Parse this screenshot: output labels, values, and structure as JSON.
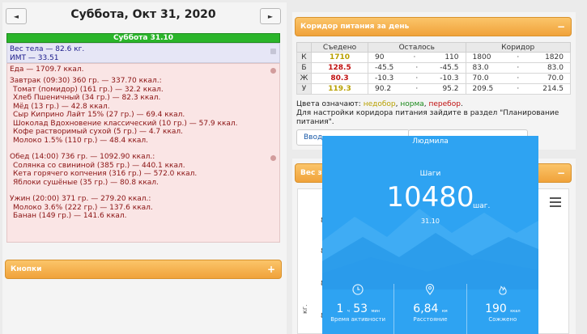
{
  "date_nav": {
    "prev_label": "◄",
    "next_label": "►",
    "title": "Суббота, Окт 31, 2020"
  },
  "day_bar": "Суббота 31.10",
  "body": {
    "weight": "Вес тела — 82.6 кг.",
    "bmi": "ИМТ — 33.51"
  },
  "food": {
    "total": "Еда — 1709.7 ккал.",
    "meals": [
      {
        "title": "Завтрак (09:30) 360 гр. — 337.70 ккал.:",
        "items": [
          "Томат (помидор) (161 гр.) — 32.2 ккал.",
          "Хлеб Пшеничный (34 гр.) — 82.3 ккал.",
          "Мёд (13 гр.) — 42.8 ккал.",
          "Сыр Киприно Лайт 15% (27 гр.) — 69.4 ккал.",
          "Шоколад Вдохновение классический (10 гр.) — 57.9 ккал.",
          "Кофе растворимый сухой (5 гр.) — 4.7 ккал.",
          "Молоко 1.5% (110 гр.) — 48.4 ккал."
        ]
      },
      {
        "title": "Обед (14:00) 736 гр. — 1092.90 ккал.:",
        "items": [
          "Солянка со свининой (385 гр.) — 440.1 ккал.",
          "Кета горячего копчения (316 гр.) — 572.0 ккал.",
          "Яблоки сушёные (35 гр.) — 80.8 ккал."
        ]
      },
      {
        "title": "Ужин (20:00) 371 гр. — 279.20 ккал.:",
        "items": [
          "Молоко 3.6% (222 гр.) — 137.6 ккал.",
          "Банан (149 гр.) — 141.6 ккал."
        ]
      }
    ]
  },
  "buttons_panel": {
    "title": "Кнопки",
    "toggle": "+"
  },
  "corridor": {
    "title": "Коридор питания за день",
    "toggle": "−",
    "headers": [
      "Съедено",
      "Осталось",
      "Коридор"
    ],
    "rows": [
      {
        "label": "К",
        "eaten": "1710",
        "eaten_color": "#b8a000",
        "left_from": "90",
        "dot": "·",
        "left_to": "110",
        "corr_from": "1800",
        "corr_to": "1820"
      },
      {
        "label": "Б",
        "eaten": "128.5",
        "eaten_color": "#c01010",
        "left_from": "-45.5",
        "dot": "·",
        "left_to": "-45.5",
        "corr_from": "83.0",
        "corr_to": "83.0"
      },
      {
        "label": "Ж",
        "eaten": "80.3",
        "eaten_color": "#c01010",
        "left_from": "-10.3",
        "dot": "·",
        "left_to": "-10.3",
        "corr_from": "70.0",
        "corr_to": "70.0"
      },
      {
        "label": "У",
        "eaten": "119.3",
        "eaten_color": "#b8a000",
        "left_from": "90.2",
        "dot": "·",
        "left_to": "95.2",
        "corr_from": "209.5",
        "corr_to": "214.5"
      }
    ],
    "legend_prefix": "Цвета означают: ",
    "legend_under": "недобор",
    "legend_sep1": ", ",
    "legend_norm": "норма",
    "legend_sep2": ", ",
    "legend_over": "перебор",
    "legend_end": ".",
    "note": "Для настройки коридора питания зайдите в раздел \"Планирование питания\".",
    "btn1_label": "Ввод",
    "btn2_label": ""
  },
  "weight_panel": {
    "title": "Вес за",
    "toggle": "−",
    "axis_values": [
      "8",
      "8",
      "8",
      "8"
    ],
    "axis_unit": "кг."
  },
  "phone": {
    "user": "Людмила",
    "steps_label": "Шаги",
    "steps_value": "10480",
    "steps_unit": "шаг.",
    "date": "31.10",
    "stats": [
      {
        "icon": "clock-icon",
        "value_main": "1",
        "value_unit1": "ч",
        "value_main2": "53",
        "value_unit2": "мин",
        "label": "Время активности"
      },
      {
        "icon": "location-pin-icon",
        "value_main": "6,84",
        "value_unit1": "км",
        "value_main2": "",
        "value_unit2": "",
        "label": "Расстояние"
      },
      {
        "icon": "flame-icon",
        "value_main": "190",
        "value_unit1": "ккал",
        "value_main2": "",
        "value_unit2": "",
        "label": "Сожжено"
      }
    ]
  },
  "colors": {
    "accent_orange": "#f0a23a",
    "green": "#2ab52a",
    "phone_blue": "#2ea3f2",
    "under": "#b8a000",
    "norm": "#1a8a1a",
    "over": "#c01010"
  }
}
